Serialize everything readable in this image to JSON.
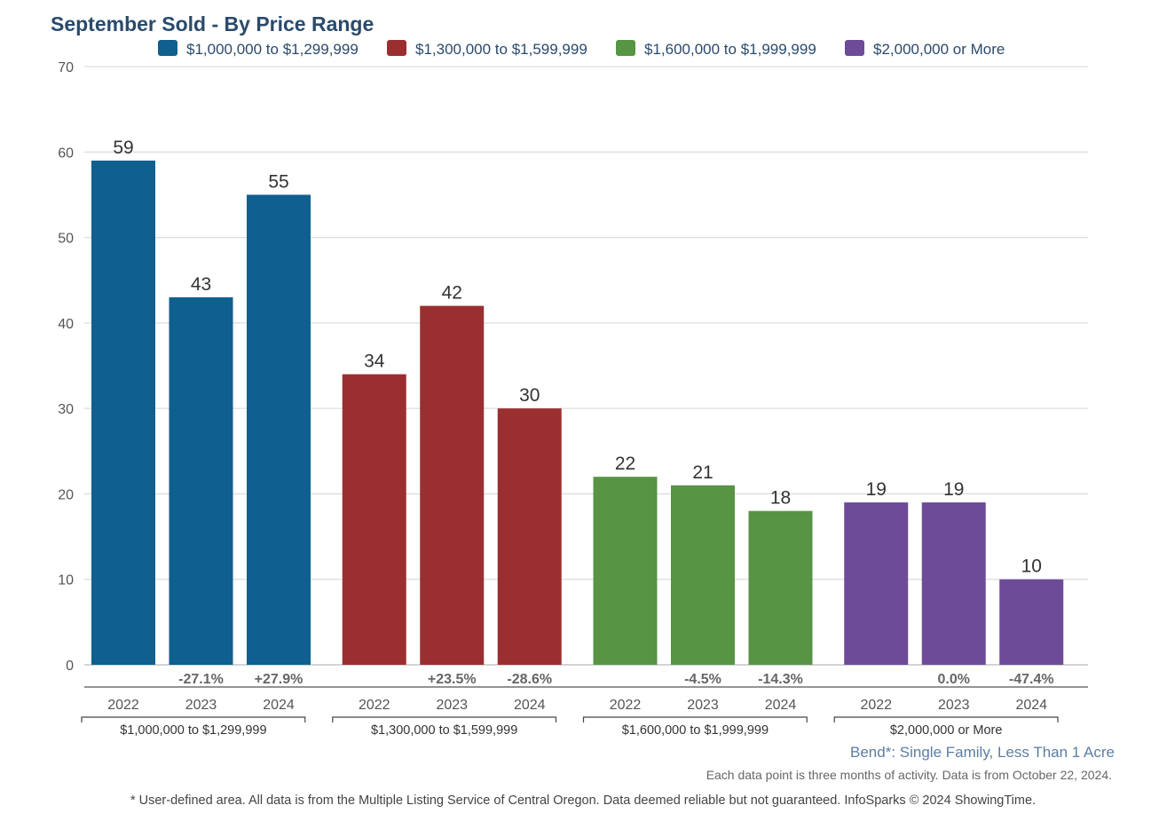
{
  "chart_data": {
    "type": "bar",
    "title": "September Sold - By Price Range",
    "ylim": [
      0,
      70
    ],
    "yticks": [
      0,
      10,
      20,
      30,
      40,
      50,
      60,
      70
    ],
    "grid": true,
    "legend_placement": "top",
    "categories": [
      "2022",
      "2023",
      "2024"
    ],
    "series": [
      {
        "name": "$1,000,000 to $1,299,999",
        "color": "#0f5f8f",
        "values": [
          59,
          43,
          55
        ],
        "changes": [
          "",
          "-27.1%",
          "+27.9%"
        ]
      },
      {
        "name": "$1,300,000 to $1,599,999",
        "color": "#9b2f30",
        "values": [
          34,
          42,
          30
        ],
        "changes": [
          "",
          "+23.5%",
          "-28.6%"
        ]
      },
      {
        "name": "$1,600,000 to $1,999,999",
        "color": "#579444",
        "values": [
          22,
          21,
          18
        ],
        "changes": [
          "",
          "-4.5%",
          "-14.3%"
        ]
      },
      {
        "name": "$2,000,000 or More",
        "color": "#6e4b98",
        "values": [
          19,
          19,
          10
        ],
        "changes": [
          "",
          "0.0%",
          "-47.4%"
        ]
      }
    ]
  },
  "subtitle": "Bend*: Single Family, Less Than 1 Acre",
  "note": "Each data point is three months of activity. Data is from October 22, 2024.",
  "footer": "* User-defined area. All data is from the Multiple Listing Service of Central Oregon. Data deemed reliable but not guaranteed. InfoSparks © 2024 ShowingTime."
}
